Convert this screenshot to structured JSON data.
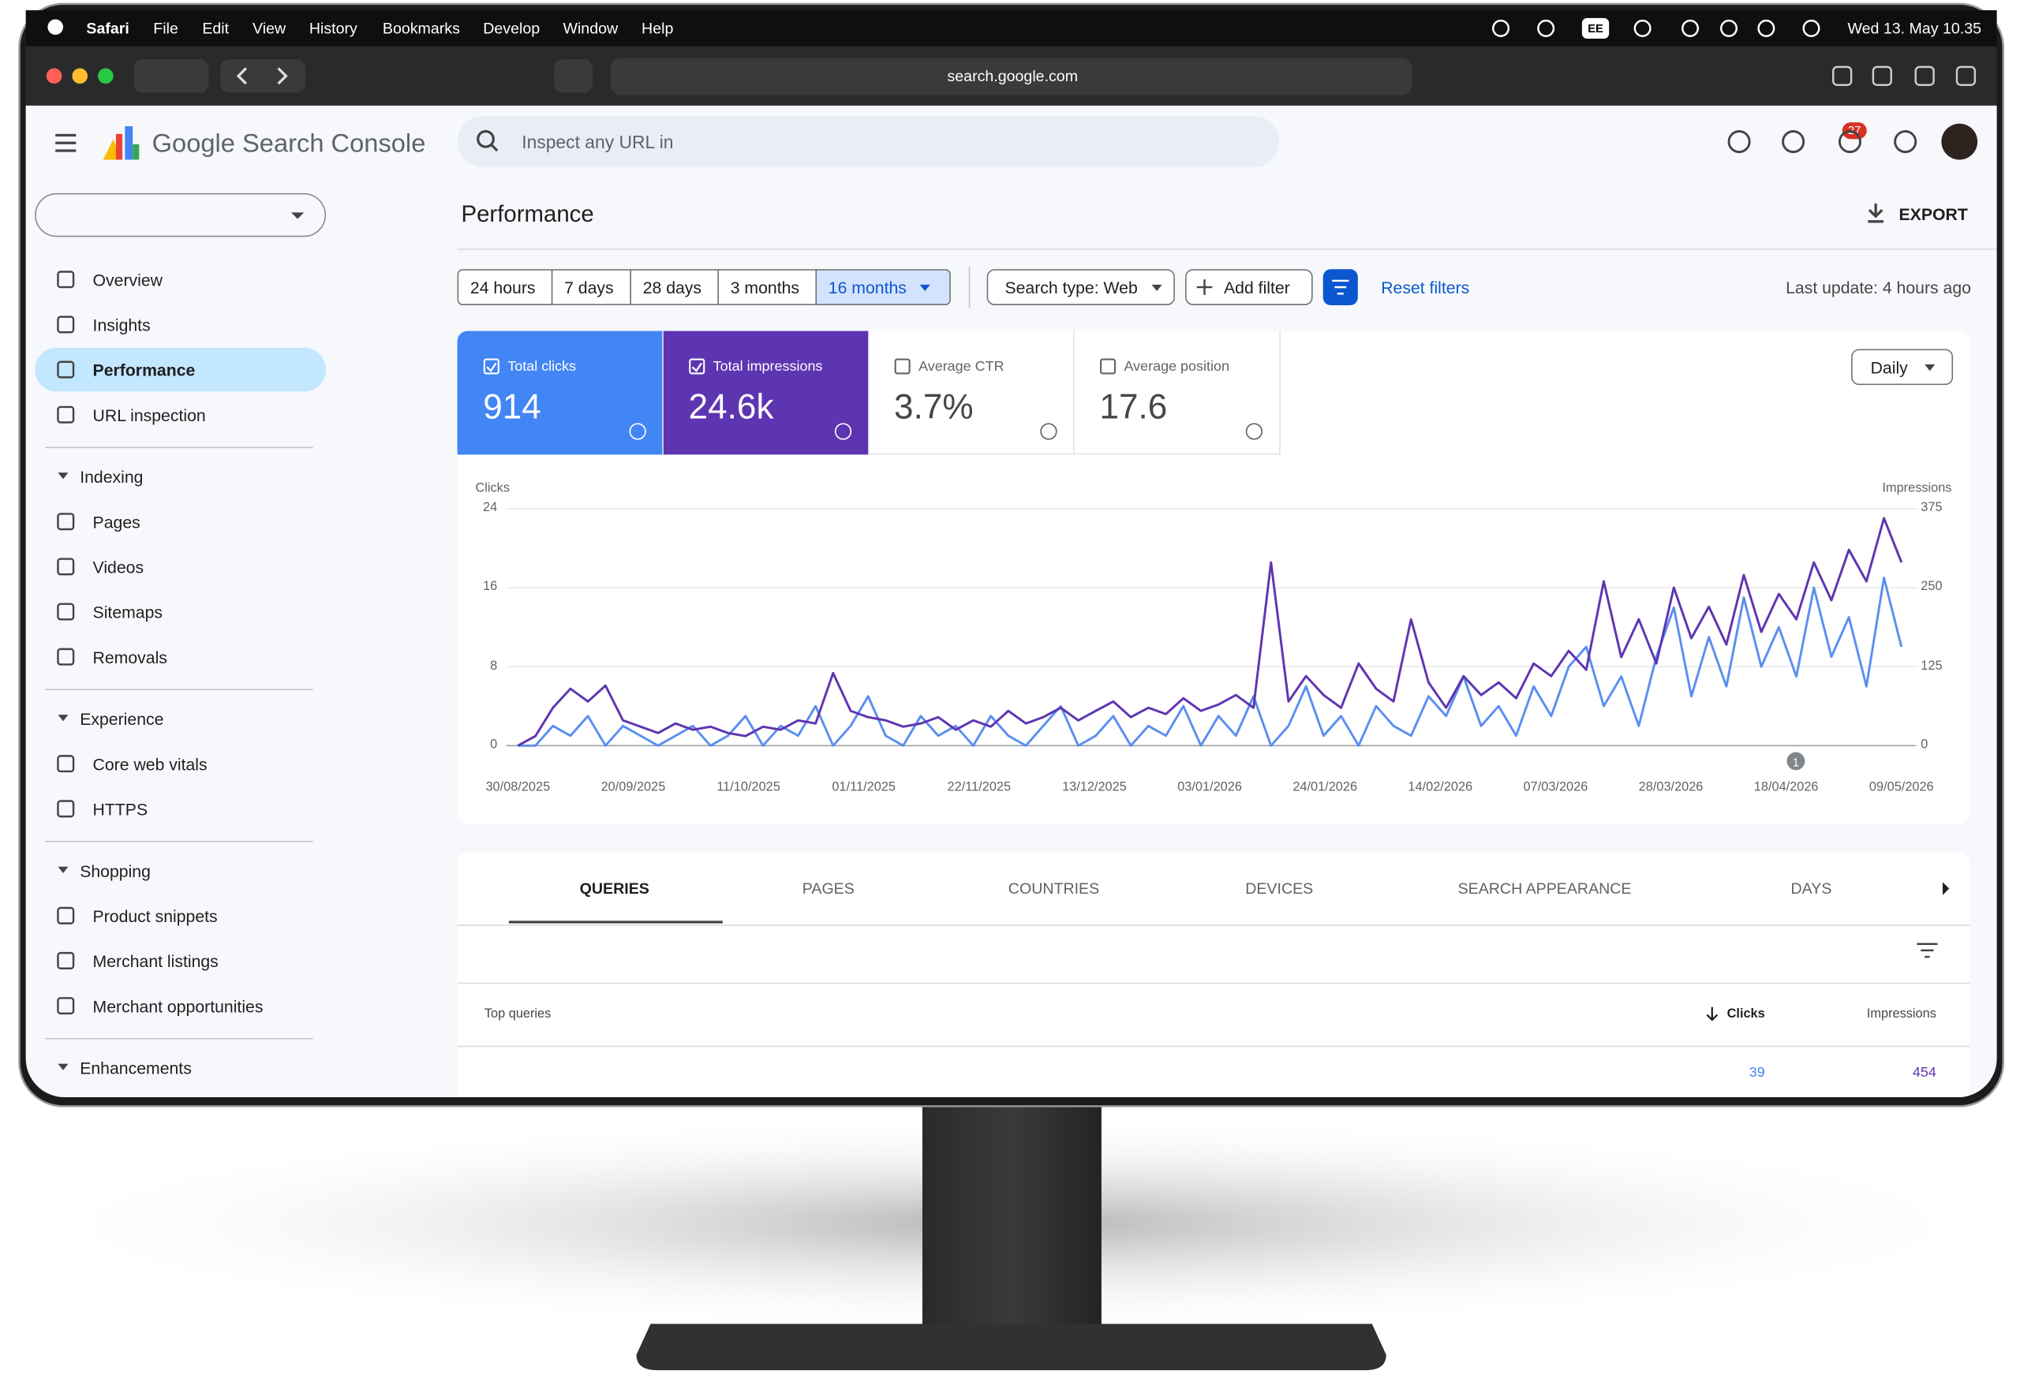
{
  "menubar": {
    "app": "Safari",
    "items": [
      "File",
      "Edit",
      "View",
      "History",
      "Bookmarks",
      "Develop",
      "Window",
      "Help"
    ],
    "badge": "EE",
    "clock": "Wed 13. May  10.35"
  },
  "browser": {
    "url": "search.google.com"
  },
  "header": {
    "product": "Google Search Console",
    "search_placeholder": "Inspect any URL in",
    "notifications": "27"
  },
  "sidebar": {
    "groups": [
      {
        "items": [
          "Overview",
          "Insights",
          "Performance",
          "URL inspection"
        ]
      },
      {
        "title": "Indexing",
        "items": [
          "Pages",
          "Videos",
          "Sitemaps",
          "Removals"
        ]
      },
      {
        "title": "Experience",
        "items": [
          "Core web vitals",
          "HTTPS"
        ]
      },
      {
        "title": "Shopping",
        "items": [
          "Product snippets",
          "Merchant listings",
          "Merchant opportunities"
        ]
      },
      {
        "title": "Enhancements",
        "items": []
      }
    ],
    "active": {
      "group": 0,
      "item": 2
    }
  },
  "page": {
    "title": "Performance",
    "export": "EXPORT",
    "ranges": [
      "24 hours",
      "7 days",
      "28 days",
      "3 months",
      "16 months"
    ],
    "selected_range": 4,
    "search_type": "Search type: Web",
    "add_filter": "Add filter",
    "reset": "Reset filters",
    "last_update": "Last update: 4 hours ago",
    "granularity": "Daily"
  },
  "metrics": [
    {
      "label": "Total clicks",
      "value": "914",
      "selected": true,
      "color": "#4285f4"
    },
    {
      "label": "Total impressions",
      "value": "24.6k",
      "selected": true,
      "color": "#5e35b1"
    },
    {
      "label": "Average CTR",
      "value": "3.7%",
      "selected": false
    },
    {
      "label": "Average position",
      "value": "17.6",
      "selected": false
    }
  ],
  "chart": {
    "type": "line",
    "y_label": "Clicks",
    "y2_label": "Impressions",
    "ylim": [
      0,
      24
    ],
    "yticks": [
      0,
      8,
      16,
      24
    ],
    "y2lim": [
      0,
      375
    ],
    "y2ticks": [
      0,
      125,
      250,
      375
    ],
    "x_labels": [
      "30/08/2025",
      "20/09/2025",
      "11/10/2025",
      "01/11/2025",
      "22/11/2025",
      "13/12/2025",
      "03/01/2026",
      "24/01/2026",
      "14/02/2026",
      "07/03/2026",
      "28/03/2026",
      "18/04/2026",
      "09/05/2026"
    ],
    "annotation": "1",
    "series": [
      {
        "color": "#5b8ff0",
        "values": [
          0,
          0,
          2,
          1,
          3,
          0,
          2,
          1,
          0,
          1,
          2,
          0,
          1,
          3,
          0,
          2,
          1,
          4,
          0,
          2,
          5,
          1,
          0,
          3,
          1,
          2,
          0,
          3,
          1,
          0,
          2,
          4,
          0,
          1,
          3,
          0,
          2,
          1,
          4,
          0,
          3,
          1,
          5,
          0,
          2,
          6,
          1,
          3,
          0,
          4,
          2,
          1,
          5,
          3,
          7,
          2,
          4,
          1,
          6,
          3,
          8,
          10,
          4,
          7,
          2,
          9,
          14,
          5,
          11,
          6,
          15,
          8,
          12,
          7,
          16,
          9,
          13,
          6,
          17,
          10
        ]
      },
      {
        "color": "#5e35b1",
        "axis": "y2",
        "values": [
          0,
          15,
          60,
          90,
          70,
          95,
          40,
          30,
          20,
          35,
          25,
          30,
          20,
          15,
          30,
          25,
          40,
          35,
          115,
          55,
          45,
          40,
          30,
          35,
          45,
          25,
          40,
          30,
          55,
          35,
          45,
          60,
          40,
          55,
          70,
          45,
          60,
          50,
          75,
          55,
          65,
          80,
          60,
          290,
          70,
          110,
          80,
          60,
          130,
          90,
          70,
          200,
          100,
          60,
          110,
          80,
          100,
          75,
          130,
          110,
          150,
          120,
          260,
          140,
          200,
          130,
          250,
          170,
          220,
          160,
          270,
          180,
          240,
          200,
          290,
          230,
          310,
          260,
          360,
          290
        ]
      }
    ]
  },
  "tabs": [
    "QUERIES",
    "PAGES",
    "COUNTRIES",
    "DEVICES",
    "SEARCH APPEARANCE",
    "DAYS"
  ],
  "table": {
    "caption": "Top queries",
    "columns": [
      "Clicks",
      "Impressions"
    ],
    "rows": [
      [
        39,
        454
      ]
    ]
  }
}
